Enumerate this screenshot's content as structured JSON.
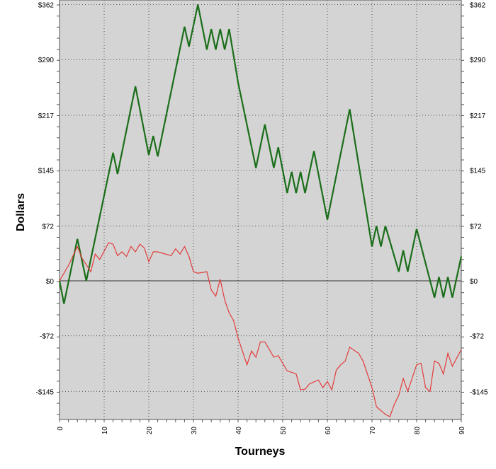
{
  "chart_data": {
    "type": "line",
    "title": "",
    "xlabel": "Tourneys",
    "ylabel": "Dollars",
    "xlim": [
      0,
      90
    ],
    "ylim": [
      -175,
      362
    ],
    "grid": true,
    "legend": "none",
    "x_ticks": [
      0,
      10,
      20,
      30,
      40,
      50,
      60,
      70,
      80,
      90
    ],
    "x_tick_labels": [
      "0",
      "10",
      "20",
      "30",
      "40",
      "50",
      "60",
      "70",
      "80",
      "90"
    ],
    "y_ticks": [
      362,
      290,
      217,
      145,
      72,
      0,
      -72,
      -145
    ],
    "y_tick_labels": [
      "$362",
      "$290",
      "$217",
      "$145",
      "$72",
      "$0",
      "-$72",
      "-$145"
    ],
    "plot_background": "#d4d4d4",
    "zero_line": true,
    "series": [
      {
        "color": "#1a6e1a",
        "x": [
          0,
          1,
          4,
          6,
          12,
          13,
          17,
          20,
          21,
          22,
          28,
          29,
          31,
          33,
          34,
          35,
          36,
          37,
          38,
          40,
          44,
          46,
          48,
          49,
          51,
          52,
          53,
          54,
          55,
          57,
          60,
          65,
          70,
          71,
          72,
          73,
          76,
          77,
          78,
          80,
          84,
          85,
          86,
          87,
          88,
          90
        ],
        "y": [
          0,
          -30,
          55,
          0,
          168,
          140,
          255,
          165,
          190,
          163,
          333,
          307,
          362,
          303,
          330,
          303,
          330,
          303,
          330,
          260,
          148,
          205,
          148,
          175,
          115,
          143,
          115,
          143,
          115,
          170,
          80,
          225,
          45,
          72,
          45,
          72,
          12,
          40,
          12,
          68,
          -22,
          5,
          -22,
          5,
          -22,
          32
        ]
      },
      {
        "color": "#e23b3b",
        "x": [
          0,
          2,
          4,
          5,
          7,
          8,
          9,
          11,
          12,
          13,
          14,
          15,
          16,
          17,
          18,
          19,
          20,
          21,
          22,
          25,
          26,
          27,
          28,
          29,
          30,
          31,
          33,
          34,
          35,
          36,
          37,
          38,
          39,
          40,
          42,
          43,
          44,
          45,
          46,
          48,
          49,
          51,
          53,
          54,
          55,
          56,
          58,
          59,
          60,
          61,
          62,
          63,
          64,
          65,
          67,
          68,
          70,
          71,
          72,
          73,
          74,
          75,
          76,
          77,
          78,
          80,
          81,
          82,
          83,
          84,
          85,
          86,
          87,
          88,
          90
        ],
        "y": [
          0,
          20,
          45,
          30,
          12,
          35,
          28,
          50,
          48,
          33,
          38,
          32,
          45,
          38,
          48,
          43,
          25,
          38,
          38,
          33,
          42,
          35,
          45,
          32,
          12,
          10,
          12,
          -12,
          -20,
          2,
          -25,
          -42,
          -52,
          -75,
          -110,
          -92,
          -100,
          -80,
          -80,
          -100,
          -98,
          -118,
          -122,
          -143,
          -142,
          -135,
          -130,
          -140,
          -132,
          -143,
          -117,
          -110,
          -105,
          -87,
          -95,
          -105,
          -140,
          -165,
          -170,
          -175,
          -178,
          -162,
          -150,
          -128,
          -145,
          -110,
          -108,
          -140,
          -145,
          -105,
          -108,
          -122,
          -95,
          -112,
          -90
        ]
      }
    ]
  }
}
